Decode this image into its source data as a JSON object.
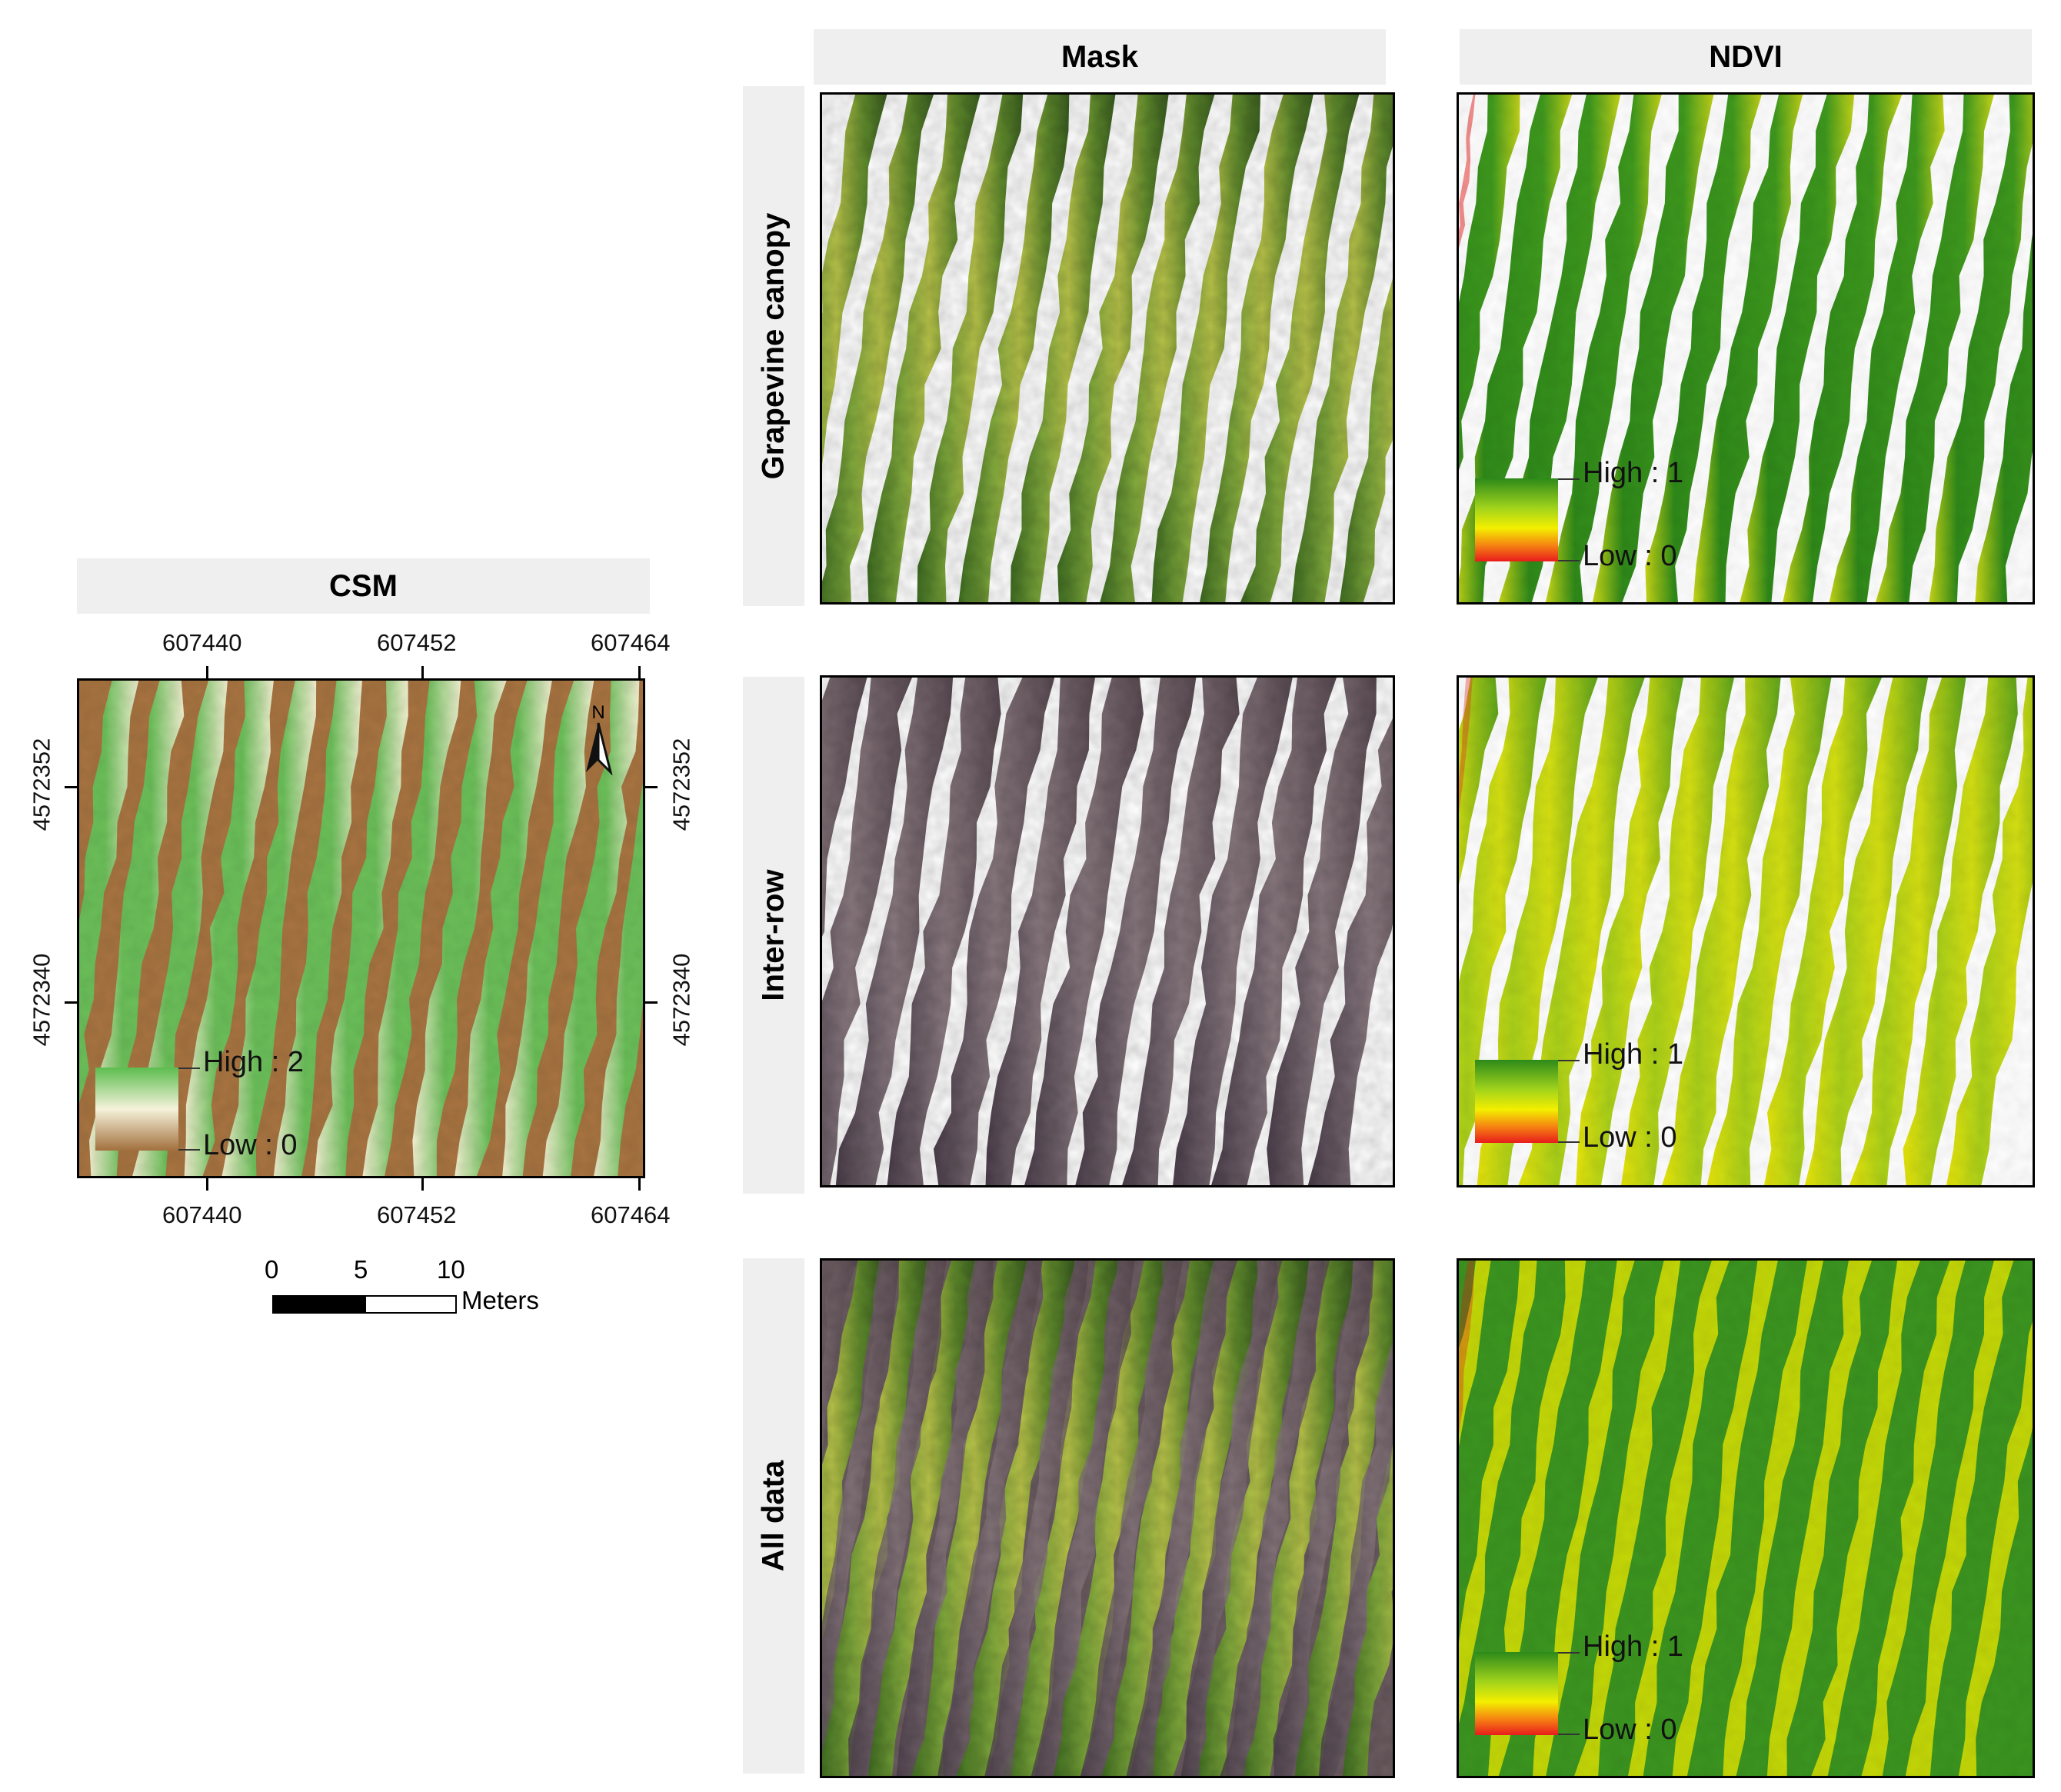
{
  "headers": {
    "csm": "CSM",
    "mask": "Mask",
    "ndvi": "NDVI"
  },
  "rows": [
    {
      "label": "Grapevine canopy"
    },
    {
      "label": "Inter-row"
    },
    {
      "label": "All data"
    }
  ],
  "csm": {
    "x_ticks": [
      "607440",
      "607452",
      "607464"
    ],
    "y_ticks": [
      "4572352",
      "4572340"
    ],
    "legend": {
      "high": "High : 2",
      "low": "Low : 0"
    },
    "north": "N"
  },
  "ndvi_legend": {
    "high": "High : 1",
    "low": "Low : 0"
  },
  "scalebar": {
    "ticks": [
      "0",
      "5",
      "10"
    ],
    "unit": "Meters"
  },
  "colors": {
    "csm_high": "#6cc05a",
    "csm_mid": "#f3f0d2",
    "csm_low": "#a87441",
    "ndvi_high": "#2f8a1a",
    "ndvi_mid": "#f2ee00",
    "ndvi_low": "#e8201c",
    "canopy": "#6f9a3c",
    "soil": "#6e5e66"
  }
}
